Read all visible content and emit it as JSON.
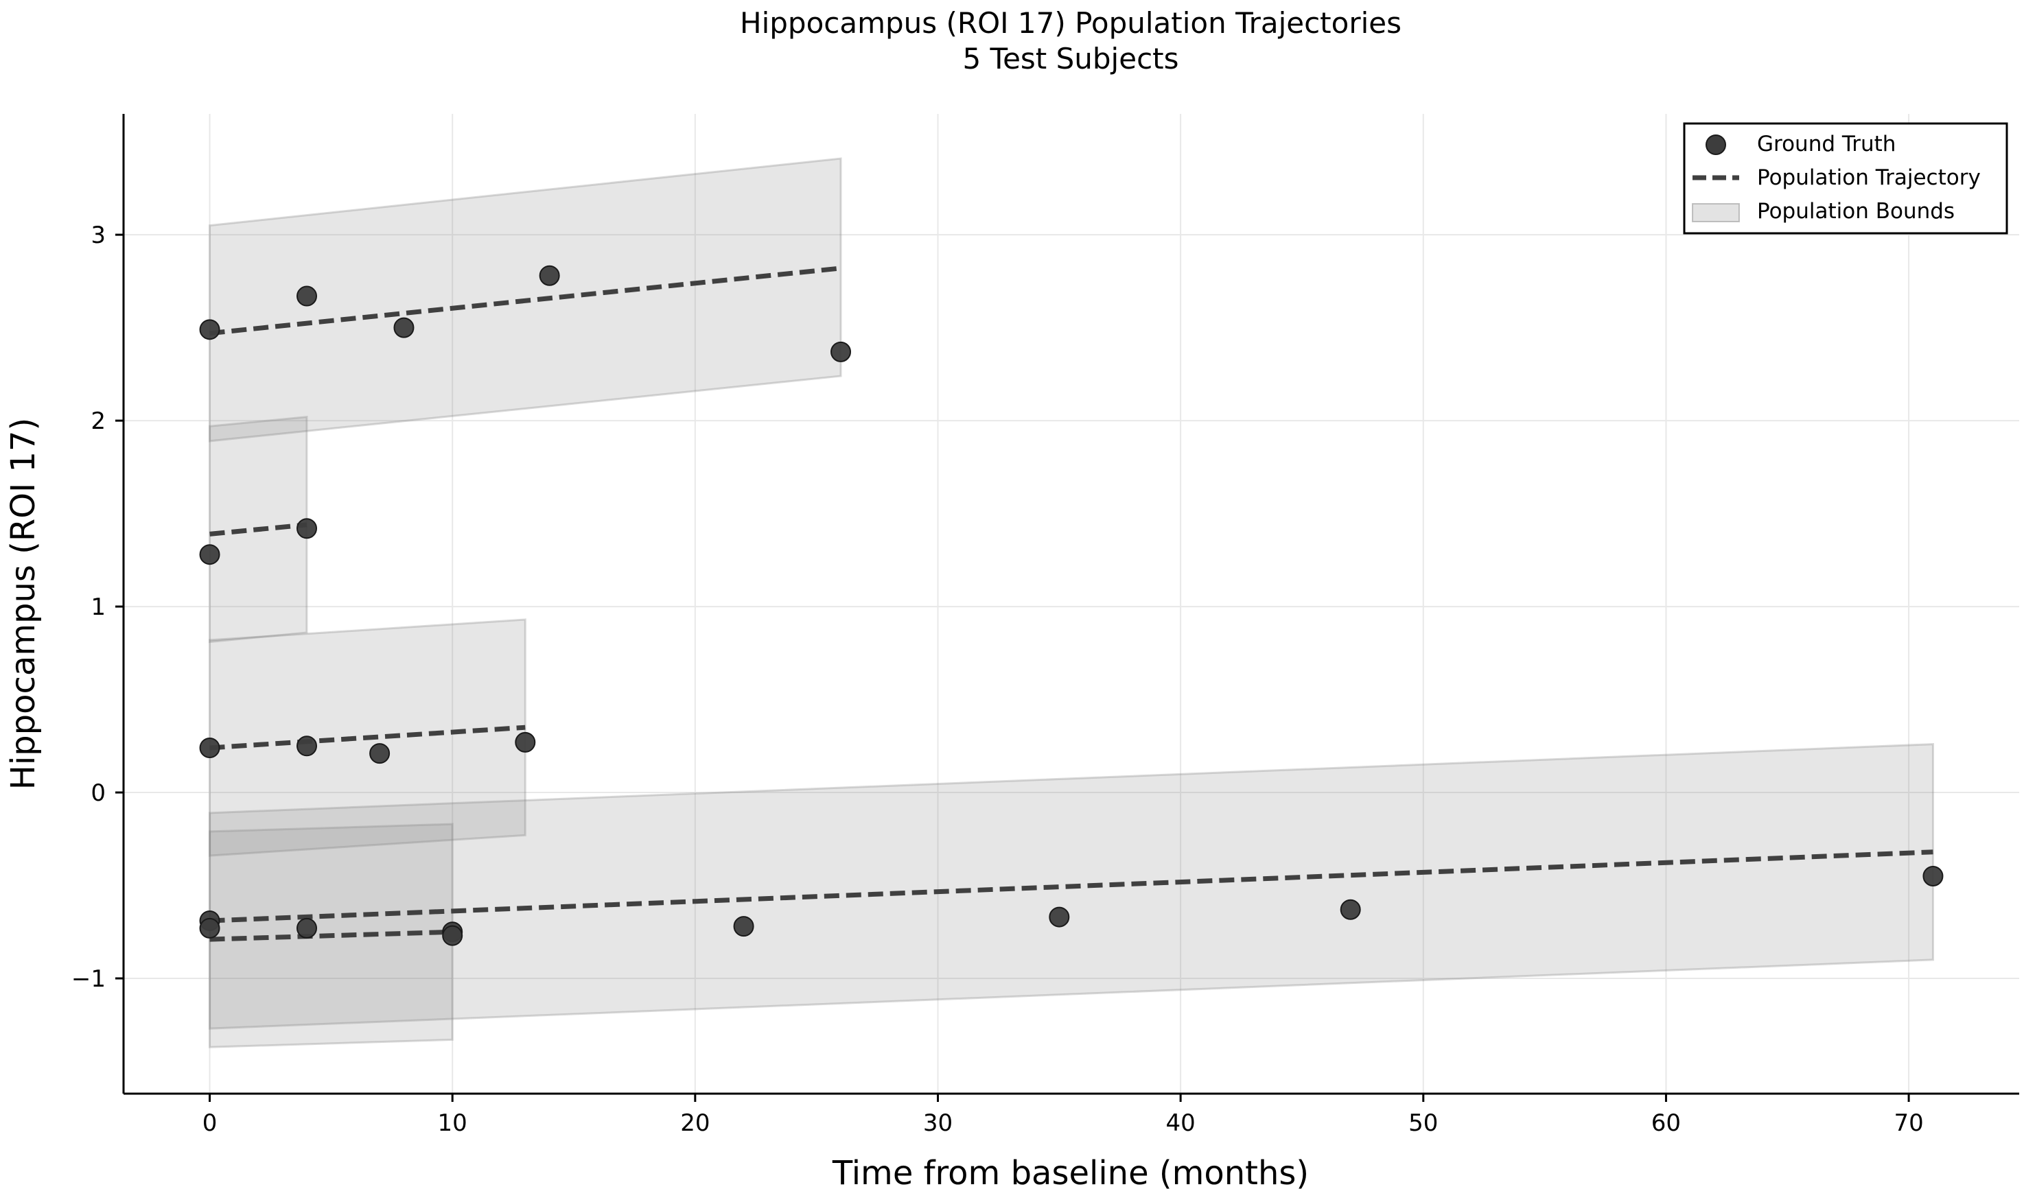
{
  "chart_data": {
    "type": "scatter",
    "title": "Hippocampus (ROI 17) Population Trajectories",
    "subtitle": "5 Test Subjects",
    "xlabel": "Time from baseline (months)",
    "ylabel": "Hippocampus (ROI 17)",
    "xlim": [
      -3.55,
      74.55
    ],
    "ylim": [
      -1.62,
      3.65
    ],
    "x_ticks": [
      0,
      10,
      20,
      30,
      40,
      50,
      60,
      70
    ],
    "x_tick_labels": [
      "0",
      "10",
      "20",
      "30",
      "40",
      "50",
      "60",
      "70"
    ],
    "y_ticks": [
      -1,
      0,
      1,
      2,
      3
    ],
    "y_tick_labels": [
      "−1",
      "0",
      "1",
      "2",
      "3"
    ],
    "grid": true,
    "legend_position": "top-right",
    "legend": {
      "points": "Ground Truth",
      "trajectory": "Population Trajectory",
      "bounds": "Population Bounds"
    },
    "colors": {
      "points": "#3d3d3d",
      "trajectory": "#404040",
      "bounds": "#808080",
      "grid": "#e8e8e8"
    },
    "subjects": [
      {
        "points": [
          [
            0,
            2.49
          ],
          [
            4,
            2.67
          ],
          [
            8,
            2.5
          ],
          [
            14,
            2.78
          ],
          [
            26,
            2.37
          ]
        ],
        "trajectory": [
          [
            0,
            2.47
          ],
          [
            26,
            2.82
          ]
        ],
        "bounds_upper": [
          [
            0,
            3.05
          ],
          [
            26,
            3.41
          ]
        ],
        "bounds_lower": [
          [
            0,
            1.89
          ],
          [
            26,
            2.24
          ]
        ]
      },
      {
        "points": [
          [
            0,
            1.28
          ],
          [
            4,
            1.42
          ]
        ],
        "trajectory": [
          [
            0,
            1.39
          ],
          [
            4,
            1.44
          ]
        ],
        "bounds_upper": [
          [
            0,
            1.97
          ],
          [
            4,
            2.02
          ]
        ],
        "bounds_lower": [
          [
            0,
            0.81
          ],
          [
            4,
            0.86
          ]
        ]
      },
      {
        "points": [
          [
            0,
            0.24
          ],
          [
            4,
            0.25
          ],
          [
            7,
            0.21
          ],
          [
            13,
            0.27
          ]
        ],
        "trajectory": [
          [
            0,
            0.24
          ],
          [
            13,
            0.35
          ]
        ],
        "bounds_upper": [
          [
            0,
            0.82
          ],
          [
            13,
            0.93
          ]
        ],
        "bounds_lower": [
          [
            0,
            -0.34
          ],
          [
            13,
            -0.23
          ]
        ]
      },
      {
        "points": [
          [
            0,
            -0.69
          ],
          [
            22,
            -0.72
          ],
          [
            35,
            -0.67
          ],
          [
            47,
            -0.63
          ],
          [
            71,
            -0.45
          ]
        ],
        "trajectory": [
          [
            0,
            -0.69
          ],
          [
            71,
            -0.32
          ]
        ],
        "bounds_upper": [
          [
            0,
            -0.11
          ],
          [
            71,
            0.26
          ]
        ],
        "bounds_lower": [
          [
            0,
            -1.27
          ],
          [
            71,
            -0.9
          ]
        ]
      },
      {
        "points": [
          [
            0,
            -0.73
          ],
          [
            4,
            -0.73
          ],
          [
            10,
            -0.75
          ],
          [
            10,
            -0.77
          ]
        ],
        "trajectory": [
          [
            0,
            -0.79
          ],
          [
            10,
            -0.75
          ]
        ],
        "bounds_upper": [
          [
            0,
            -0.21
          ],
          [
            10,
            -0.17
          ]
        ],
        "bounds_lower": [
          [
            0,
            -1.37
          ],
          [
            10,
            -1.33
          ]
        ]
      }
    ]
  }
}
